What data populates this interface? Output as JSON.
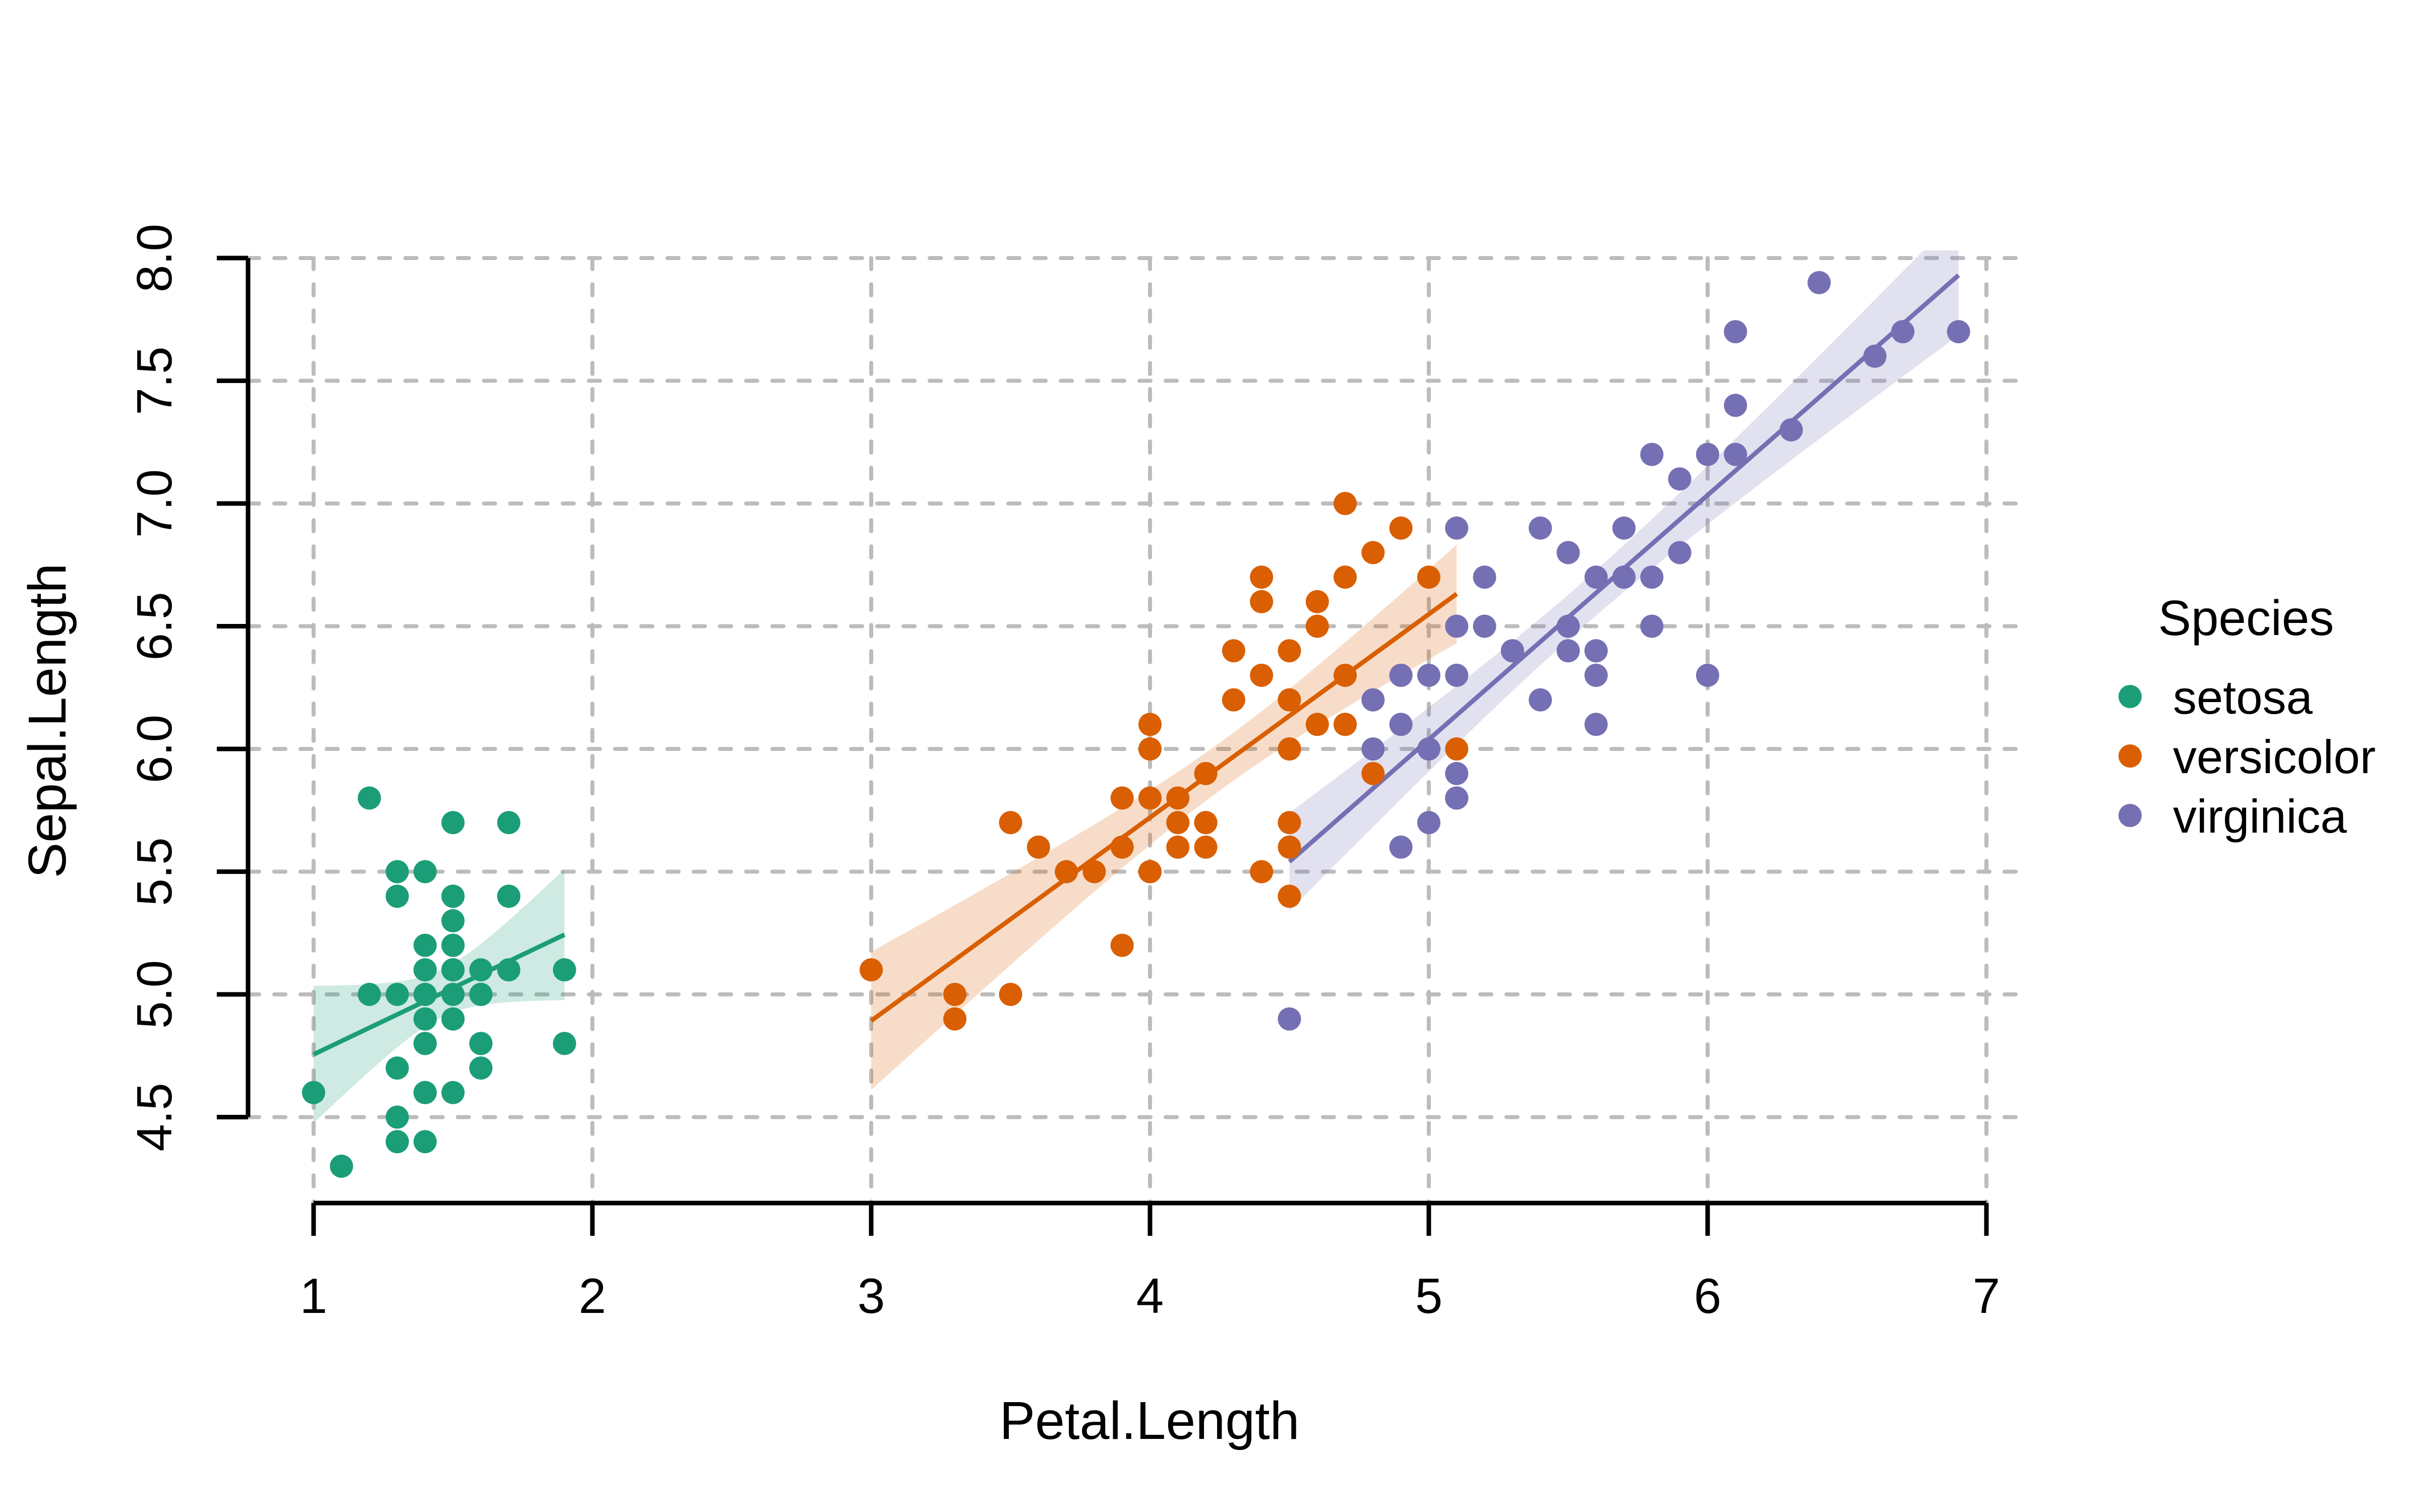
{
  "chart_data": {
    "type": "scatter",
    "title": "",
    "xlabel": "Petal.Length",
    "ylabel": "Sepal.Length",
    "xlim": [
      1,
      7
    ],
    "ylim": [
      4.5,
      8.0
    ],
    "grid": "dashed",
    "grid_color": "#bcbcbc",
    "x_ticks": [
      1,
      2,
      3,
      4,
      5,
      6,
      7
    ],
    "x_tick_labels": [
      "1",
      "2",
      "3",
      "4",
      "5",
      "6",
      "7"
    ],
    "y_ticks": [
      4.5,
      5.0,
      5.5,
      6.0,
      6.5,
      7.0,
      7.5,
      8.0
    ],
    "y_tick_labels": [
      "4.5",
      "5.0",
      "5.5",
      "6.0",
      "6.5",
      "7.0",
      "7.5",
      "8.0"
    ],
    "fit": "lm",
    "confidence_band": true,
    "legend": {
      "title": "Species",
      "position": "right",
      "entries": [
        {
          "label": "setosa",
          "color": "#1B9E77"
        },
        {
          "label": "versicolor",
          "color": "#D95F02"
        },
        {
          "label": "virginica",
          "color": "#7570B3"
        }
      ]
    },
    "series": [
      {
        "name": "setosa",
        "color": "#1B9E77",
        "points": [
          [
            1.4,
            5.1
          ],
          [
            1.4,
            4.9
          ],
          [
            1.3,
            4.7
          ],
          [
            1.5,
            4.6
          ],
          [
            1.4,
            5.0
          ],
          [
            1.7,
            5.4
          ],
          [
            1.4,
            4.6
          ],
          [
            1.5,
            5.0
          ],
          [
            1.4,
            4.4
          ],
          [
            1.5,
            4.9
          ],
          [
            1.5,
            5.4
          ],
          [
            1.6,
            4.8
          ],
          [
            1.4,
            4.8
          ],
          [
            1.1,
            4.3
          ],
          [
            1.2,
            5.8
          ],
          [
            1.5,
            5.7
          ],
          [
            1.3,
            5.4
          ],
          [
            1.4,
            5.1
          ],
          [
            1.7,
            5.7
          ],
          [
            1.5,
            5.1
          ],
          [
            1.7,
            5.4
          ],
          [
            1.5,
            5.1
          ],
          [
            1.0,
            4.6
          ],
          [
            1.7,
            5.1
          ],
          [
            1.9,
            4.8
          ],
          [
            1.6,
            5.0
          ],
          [
            1.6,
            5.0
          ],
          [
            1.5,
            5.2
          ],
          [
            1.4,
            5.2
          ],
          [
            1.6,
            4.7
          ],
          [
            1.6,
            4.8
          ],
          [
            1.5,
            5.4
          ],
          [
            1.5,
            5.2
          ],
          [
            1.4,
            5.5
          ],
          [
            1.5,
            4.9
          ],
          [
            1.2,
            5.0
          ],
          [
            1.3,
            5.5
          ],
          [
            1.4,
            4.9
          ],
          [
            1.3,
            4.4
          ],
          [
            1.5,
            5.1
          ],
          [
            1.3,
            5.0
          ],
          [
            1.3,
            4.5
          ],
          [
            1.3,
            4.4
          ],
          [
            1.6,
            5.0
          ],
          [
            1.9,
            5.1
          ],
          [
            1.4,
            4.8
          ],
          [
            1.6,
            5.1
          ],
          [
            1.4,
            4.6
          ],
          [
            1.5,
            5.3
          ],
          [
            1.4,
            5.0
          ]
        ]
      },
      {
        "name": "versicolor",
        "color": "#D95F02",
        "points": [
          [
            4.7,
            7.0
          ],
          [
            4.5,
            6.4
          ],
          [
            4.9,
            6.9
          ],
          [
            4.0,
            5.5
          ],
          [
            4.6,
            6.5
          ],
          [
            4.5,
            5.7
          ],
          [
            4.7,
            6.3
          ],
          [
            3.3,
            4.9
          ],
          [
            4.6,
            6.6
          ],
          [
            3.9,
            5.2
          ],
          [
            3.5,
            5.0
          ],
          [
            4.2,
            5.9
          ],
          [
            4.0,
            6.0
          ],
          [
            4.7,
            6.1
          ],
          [
            3.6,
            5.6
          ],
          [
            4.4,
            6.7
          ],
          [
            4.5,
            5.6
          ],
          [
            4.1,
            5.8
          ],
          [
            4.5,
            6.2
          ],
          [
            3.9,
            5.6
          ],
          [
            4.8,
            5.9
          ],
          [
            4.0,
            6.1
          ],
          [
            4.9,
            6.3
          ],
          [
            4.7,
            6.1
          ],
          [
            4.3,
            6.4
          ],
          [
            4.4,
            6.6
          ],
          [
            4.8,
            6.8
          ],
          [
            5.0,
            6.7
          ],
          [
            4.5,
            6.0
          ],
          [
            3.5,
            5.7
          ],
          [
            3.8,
            5.5
          ],
          [
            3.7,
            5.5
          ],
          [
            3.9,
            5.8
          ],
          [
            5.1,
            6.0
          ],
          [
            4.5,
            5.4
          ],
          [
            4.5,
            6.0
          ],
          [
            4.7,
            6.7
          ],
          [
            4.4,
            6.3
          ],
          [
            4.1,
            5.6
          ],
          [
            4.0,
            5.5
          ],
          [
            4.4,
            5.5
          ],
          [
            4.6,
            6.1
          ],
          [
            4.0,
            5.8
          ],
          [
            3.3,
            5.0
          ],
          [
            4.2,
            5.6
          ],
          [
            4.2,
            5.7
          ],
          [
            4.2,
            5.7
          ],
          [
            4.3,
            6.2
          ],
          [
            3.0,
            5.1
          ],
          [
            4.1,
            5.7
          ]
        ]
      },
      {
        "name": "virginica",
        "color": "#7570B3",
        "points": [
          [
            6.0,
            6.3
          ],
          [
            5.1,
            5.8
          ],
          [
            5.9,
            7.1
          ],
          [
            5.6,
            6.3
          ],
          [
            5.8,
            6.5
          ],
          [
            6.6,
            7.6
          ],
          [
            4.5,
            4.9
          ],
          [
            6.3,
            7.3
          ],
          [
            5.8,
            6.7
          ],
          [
            6.1,
            7.2
          ],
          [
            5.1,
            6.5
          ],
          [
            5.3,
            6.4
          ],
          [
            5.5,
            6.8
          ],
          [
            5.0,
            5.7
          ],
          [
            5.1,
            5.8
          ],
          [
            5.3,
            6.4
          ],
          [
            5.5,
            6.5
          ],
          [
            6.7,
            7.7
          ],
          [
            6.9,
            7.7
          ],
          [
            5.0,
            6.0
          ],
          [
            5.7,
            6.9
          ],
          [
            4.9,
            5.6
          ],
          [
            6.7,
            7.7
          ],
          [
            4.9,
            6.3
          ],
          [
            5.7,
            6.7
          ],
          [
            6.0,
            7.2
          ],
          [
            4.8,
            6.2
          ],
          [
            4.9,
            6.1
          ],
          [
            5.6,
            6.4
          ],
          [
            5.8,
            7.2
          ],
          [
            6.1,
            7.4
          ],
          [
            6.4,
            7.9
          ],
          [
            5.6,
            6.4
          ],
          [
            5.1,
            6.3
          ],
          [
            5.6,
            6.1
          ],
          [
            6.1,
            7.7
          ],
          [
            5.6,
            6.3
          ],
          [
            5.5,
            6.4
          ],
          [
            4.8,
            6.0
          ],
          [
            5.4,
            6.9
          ],
          [
            5.6,
            6.7
          ],
          [
            5.1,
            6.9
          ],
          [
            5.1,
            5.8
          ],
          [
            5.9,
            6.8
          ],
          [
            5.7,
            6.7
          ],
          [
            5.2,
            6.7
          ],
          [
            5.0,
            6.3
          ],
          [
            5.2,
            6.5
          ],
          [
            5.4,
            6.2
          ],
          [
            5.1,
            5.9
          ]
        ]
      }
    ]
  }
}
